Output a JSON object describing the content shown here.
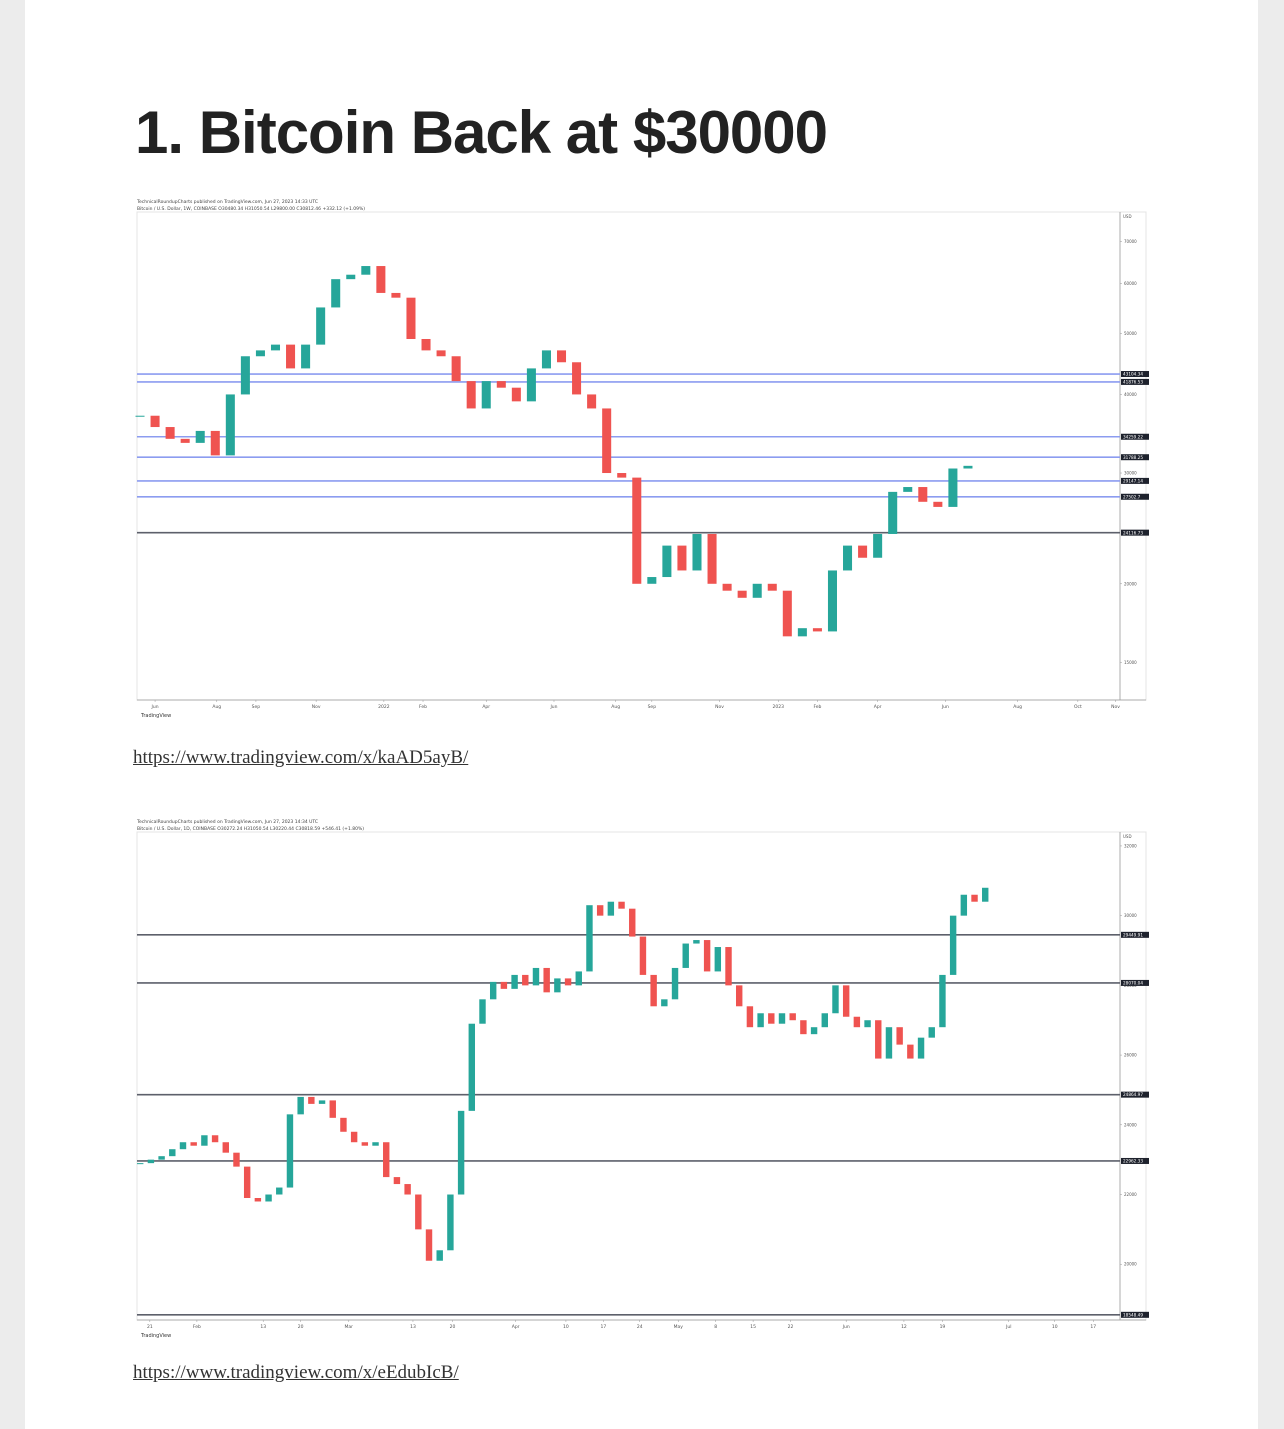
{
  "title": "1. Bitcoin Back at $30000",
  "charts": [
    {
      "type": "candlestick",
      "header": "TechnicalRoundupCharts published on TradingView.com, Jun 27, 2023 14:33 UTC",
      "subtitle": "Bitcoin / U.S. Dollar, 1W, COINBASE O30480.34 H31050.54 L29800.00 C30812.46 +332.12 (+1.09%)",
      "unit": "USD",
      "brand": "TradingView",
      "log": true,
      "ylim": [
        13070,
        78000
      ],
      "yticks": [
        70000,
        60000,
        50000,
        40000,
        30000,
        20000,
        15000
      ],
      "xlim": [
        -0.2,
        65.1
      ],
      "xticks": [
        {
          "value": 1,
          "label": "Jun"
        },
        {
          "value": 5.1,
          "label": "Aug"
        },
        {
          "value": 7.7,
          "label": "Sep"
        },
        {
          "value": 11.7,
          "label": "Nov"
        },
        {
          "value": 16.2,
          "label": "2022"
        },
        {
          "value": 18.8,
          "label": "Feb"
        },
        {
          "value": 23,
          "label": "Apr"
        },
        {
          "value": 27.5,
          "label": "Jun"
        },
        {
          "value": 31.6,
          "label": "Aug"
        },
        {
          "value": 34,
          "label": "Sep"
        },
        {
          "value": 38.5,
          "label": "Nov"
        },
        {
          "value": 42.4,
          "label": "2023"
        },
        {
          "value": 45,
          "label": "Feb"
        },
        {
          "value": 49,
          "label": "Apr"
        },
        {
          "value": 53.5,
          "label": "Jun"
        },
        {
          "value": 58.3,
          "label": "Aug"
        },
        {
          "value": 62.3,
          "label": "Oct"
        },
        {
          "value": 64.8,
          "label": "Nov"
        }
      ],
      "up_color": "#26a69a",
      "down_color": "#ef5350",
      "levels": [
        {
          "value": 43104.34,
          "color": "#8c9cf0"
        },
        {
          "value": 41876.53,
          "color": "#8c9cf0"
        },
        {
          "value": 34259.22,
          "color": "#8c9cf0"
        },
        {
          "value": 31788.25,
          "color": "#8c9cf0"
        },
        {
          "value": 29147.14,
          "color": "#8c9cf0"
        },
        {
          "value": 27502.7,
          "color": "#8c9cf0"
        },
        {
          "value": 24116.73,
          "color": "#5d606b"
        }
      ],
      "closes": [
        37000,
        35500,
        34000,
        33500,
        35000,
        32000,
        40000,
        46000,
        47000,
        48000,
        44000,
        48000,
        55000,
        61000,
        62000,
        64000,
        58000,
        57000,
        49000,
        47000,
        46000,
        42000,
        38000,
        42000,
        41000,
        39000,
        44000,
        47000,
        45000,
        40000,
        38000,
        30000,
        29500,
        20000,
        20500,
        23000,
        21000,
        24000,
        20000,
        19500,
        19000,
        20000,
        19500,
        16500,
        17000,
        16800,
        21000,
        23000,
        22000,
        24000,
        28000,
        28500,
        27000,
        26500,
        30500,
        30800
      ]
    },
    {
      "type": "candlestick",
      "header": "TechnicalRoundupCharts published on TradingView.com, Jun 27, 2023 14:34 UTC",
      "subtitle": "Bitcoin / U.S. Dollar, 1D, COINBASE O30272.24 H31050.54 L30220.44 C30818.59 +546.41 (+1.80%)",
      "unit": "USD",
      "brand": "TradingView",
      "log": false,
      "ylim": [
        18400,
        32400
      ],
      "yticks": [
        32000,
        30000,
        28000,
        26000,
        24000,
        22000,
        20000
      ],
      "xlim": [
        -0.3,
        91.6
      ],
      "xticks": [
        {
          "value": 0.9,
          "label": "21"
        },
        {
          "value": 5.3,
          "label": "Feb"
        },
        {
          "value": 11.5,
          "label": "13"
        },
        {
          "value": 15,
          "label": "20"
        },
        {
          "value": 19.5,
          "label": "Mar"
        },
        {
          "value": 25.5,
          "label": "13"
        },
        {
          "value": 29.2,
          "label": "20"
        },
        {
          "value": 35.1,
          "label": "Apr"
        },
        {
          "value": 39.8,
          "label": "10"
        },
        {
          "value": 43.3,
          "label": "17"
        },
        {
          "value": 46.7,
          "label": "24"
        },
        {
          "value": 50.3,
          "label": "May"
        },
        {
          "value": 53.8,
          "label": "8"
        },
        {
          "value": 57.3,
          "label": "15"
        },
        {
          "value": 60.8,
          "label": "22"
        },
        {
          "value": 66,
          "label": "Jun"
        },
        {
          "value": 71.4,
          "label": "12"
        },
        {
          "value": 75,
          "label": "19"
        },
        {
          "value": 81.2,
          "label": "Jul"
        },
        {
          "value": 85.5,
          "label": "10"
        },
        {
          "value": 89.1,
          "label": "17"
        }
      ],
      "up_color": "#26a69a",
      "down_color": "#ef5350",
      "levels": [
        {
          "value": 29449.91,
          "color": "#5d606b"
        },
        {
          "value": 28070.04,
          "color": "#5d606b"
        },
        {
          "value": 24864.97,
          "color": "#5d606b"
        },
        {
          "value": 22962.33,
          "color": "#5d606b"
        },
        {
          "value": 18548.49,
          "color": "#5d606b"
        }
      ],
      "closes": [
        22900,
        23000,
        23100,
        23300,
        23500,
        23400,
        23700,
        23500,
        23200,
        22800,
        21900,
        21800,
        22000,
        22200,
        24300,
        24800,
        24600,
        24700,
        24200,
        23800,
        23500,
        23400,
        23500,
        22500,
        22300,
        22000,
        21000,
        20100,
        20400,
        22000,
        24400,
        26900,
        27600,
        28100,
        27900,
        28300,
        28000,
        28500,
        27800,
        28200,
        28000,
        28400,
        30300,
        30000,
        30400,
        30200,
        29400,
        28300,
        27400,
        27600,
        28500,
        29200,
        29300,
        28400,
        29100,
        28000,
        27400,
        26800,
        27200,
        26900,
        27200,
        27000,
        26600,
        26800,
        27200,
        28000,
        27100,
        26800,
        27000,
        25900,
        26800,
        26300,
        25900,
        26500,
        26800,
        28300,
        30000,
        30600,
        30400,
        30800
      ]
    }
  ],
  "links": [
    "https://www.tradingview.com/x/kaAD5ayB/",
    "https://www.tradingview.com/x/eEdubIcB/"
  ]
}
